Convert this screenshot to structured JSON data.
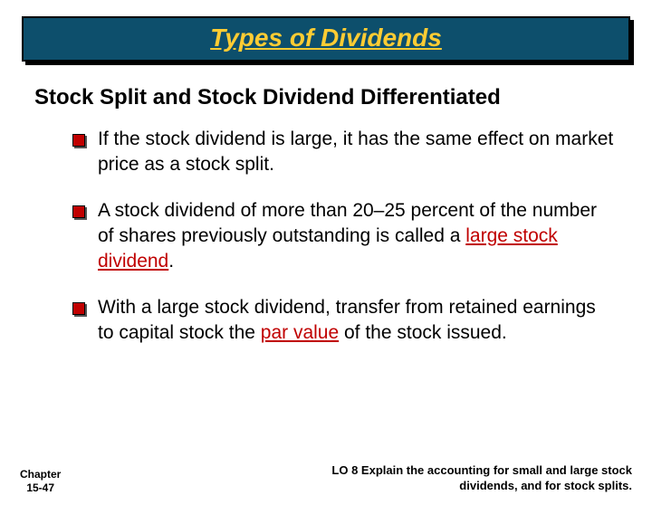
{
  "title": "Types of Dividends",
  "subtitle": "Stock Split and Stock Dividend Differentiated",
  "bullets": [
    {
      "pre": "If the stock dividend is large, it has the same effect on market price as a stock split.",
      "kw": "",
      "post": ""
    },
    {
      "pre": "A stock dividend of more than 20–25 percent of the number of shares previously outstanding is called a ",
      "kw": "large stock dividend",
      "post": "."
    },
    {
      "pre": "With a large stock dividend, transfer from retained earnings to capital stock the ",
      "kw": "par value",
      "post": " of the stock issued."
    }
  ],
  "chapter_line1": "Chapter",
  "chapter_line2": "15-47",
  "lo": "LO 8 Explain the accounting for small and large stock dividends, and for stock splits.",
  "colors": {
    "title_bg": "#0d4f6c",
    "title_text": "#ffcc33",
    "keyword": "#c00000",
    "bullet_fill": "#c00000"
  }
}
